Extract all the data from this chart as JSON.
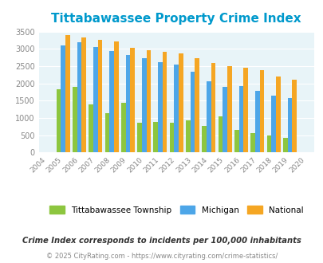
{
  "title": "Tittabawassee Property Crime Index",
  "years": [
    2004,
    2005,
    2006,
    2007,
    2008,
    2009,
    2010,
    2011,
    2012,
    2013,
    2014,
    2015,
    2016,
    2017,
    2018,
    2019,
    2020
  ],
  "township": [
    0,
    1820,
    1900,
    1390,
    1130,
    1440,
    860,
    890,
    860,
    940,
    780,
    1050,
    660,
    560,
    490,
    430,
    0
  ],
  "michigan": [
    0,
    3100,
    3200,
    3050,
    2940,
    2830,
    2720,
    2620,
    2540,
    2340,
    2050,
    1900,
    1930,
    1790,
    1640,
    1570,
    0
  ],
  "national": [
    0,
    3410,
    3340,
    3260,
    3210,
    3040,
    2950,
    2910,
    2860,
    2730,
    2600,
    2490,
    2460,
    2390,
    2210,
    2110,
    0
  ],
  "township_color": "#8dc63f",
  "michigan_color": "#4da6e8",
  "national_color": "#f5a623",
  "bg_color": "#e8f4f8",
  "title_color": "#0099cc",
  "ylim": [
    0,
    3500
  ],
  "yticks": [
    0,
    500,
    1000,
    1500,
    2000,
    2500,
    3000,
    3500
  ],
  "xlabel_color": "#999999",
  "ylabel_color": "#999999",
  "legend_labels": [
    "Tittabawassee Township",
    "Michigan",
    "National"
  ],
  "footnote1": "Crime Index corresponds to incidents per 100,000 inhabitants",
  "footnote2": "© 2025 CityRating.com - https://www.cityrating.com/crime-statistics/",
  "bar_width": 0.28
}
